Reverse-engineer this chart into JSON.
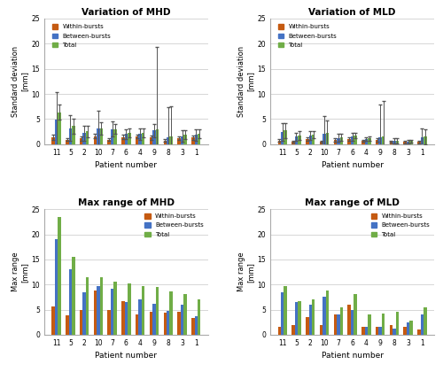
{
  "patients": [
    "11",
    "5",
    "2",
    "10",
    "7",
    "6",
    "4",
    "9",
    "8",
    "3",
    "1"
  ],
  "colors": {
    "within": "#C55A11",
    "between": "#4472C4",
    "total": "#70AD47"
  },
  "mhd_std": {
    "within": [
      1.4,
      0.9,
      1.1,
      1.6,
      0.9,
      1.4,
      1.5,
      1.3,
      0.7,
      1.2,
      1.3
    ],
    "between": [
      4.8,
      3.2,
      2.2,
      3.2,
      3.0,
      2.0,
      2.0,
      2.7,
      1.3,
      1.6,
      1.8
    ],
    "total": [
      6.3,
      3.6,
      2.5,
      3.1,
      3.0,
      2.3,
      2.3,
      2.9,
      1.6,
      1.9,
      2.0
    ]
  },
  "mhd_std_err": {
    "within": [
      0.5,
      0.3,
      0.4,
      0.5,
      0.3,
      0.4,
      0.4,
      0.4,
      0.3,
      0.4,
      0.4
    ],
    "between": [
      5.5,
      2.5,
      1.5,
      3.5,
      1.5,
      1.0,
      1.2,
      1.3,
      6.0,
      1.2,
      1.2
    ],
    "total": [
      1.5,
      1.5,
      1.2,
      1.2,
      1.0,
      0.9,
      0.9,
      16.5,
      6.0,
      0.9,
      0.9
    ]
  },
  "mld_std": {
    "within": [
      0.7,
      0.5,
      1.0,
      0.5,
      0.8,
      1.0,
      0.6,
      0.8,
      0.5,
      0.4,
      0.4
    ],
    "between": [
      2.4,
      1.5,
      1.7,
      2.0,
      1.2,
      1.5,
      1.0,
      1.3,
      0.6,
      0.5,
      1.3
    ],
    "total": [
      2.7,
      1.7,
      1.9,
      2.2,
      1.4,
      1.7,
      1.1,
      1.5,
      0.7,
      0.6,
      1.5
    ]
  },
  "mld_std_err": {
    "within": [
      0.3,
      0.2,
      0.4,
      0.2,
      0.3,
      0.4,
      0.2,
      0.3,
      0.2,
      0.2,
      0.2
    ],
    "between": [
      1.8,
      0.8,
      0.8,
      3.5,
      0.8,
      0.8,
      0.4,
      6.5,
      0.5,
      0.3,
      1.8
    ],
    "total": [
      1.5,
      0.8,
      0.7,
      2.5,
      0.7,
      0.6,
      0.4,
      7.0,
      0.5,
      0.3,
      1.5
    ]
  },
  "mhd_range": {
    "within": [
      5.7,
      3.8,
      5.0,
      8.8,
      5.0,
      6.7,
      4.0,
      4.5,
      4.4,
      4.5,
      3.3
    ],
    "between": [
      19.0,
      13.0,
      8.5,
      9.7,
      9.1,
      6.5,
      7.0,
      6.2,
      4.8,
      6.0,
      3.7
    ],
    "total": [
      23.5,
      15.5,
      11.5,
      11.5,
      10.5,
      10.3,
      9.7,
      9.5,
      8.7,
      8.2,
      7.0
    ]
  },
  "mld_range": {
    "within": [
      1.5,
      2.0,
      3.5,
      2.0,
      4.0,
      6.0,
      1.5,
      1.5,
      2.0,
      1.5,
      1.0
    ],
    "between": [
      8.5,
      6.5,
      6.0,
      7.5,
      4.0,
      5.0,
      1.5,
      1.5,
      1.2,
      2.5,
      4.0
    ],
    "total": [
      9.7,
      6.7,
      7.0,
      8.8,
      5.5,
      8.2,
      4.0,
      4.2,
      4.5,
      2.8,
      5.5
    ]
  },
  "std_ylim": [
    0,
    25.0
  ],
  "std_yticks": [
    0.0,
    5.0,
    10.0,
    15.0,
    20.0,
    25.0
  ],
  "range_ylim": [
    0,
    25
  ],
  "range_yticks": [
    0,
    5,
    10,
    15,
    20,
    25
  ],
  "std_ylabel": "Standard deviation\n[mm]",
  "range_ylabel": "Max range\n[mm]",
  "xlabel": "Patient number",
  "title_mhd_std": "Variation of MHD",
  "title_mld_std": "Variation of MLD",
  "title_mhd_range": "Max range of MHD",
  "title_mld_range": "Max range of MLD",
  "legend_labels": [
    "Within-bursts",
    "Between-bursts",
    "Total"
  ]
}
